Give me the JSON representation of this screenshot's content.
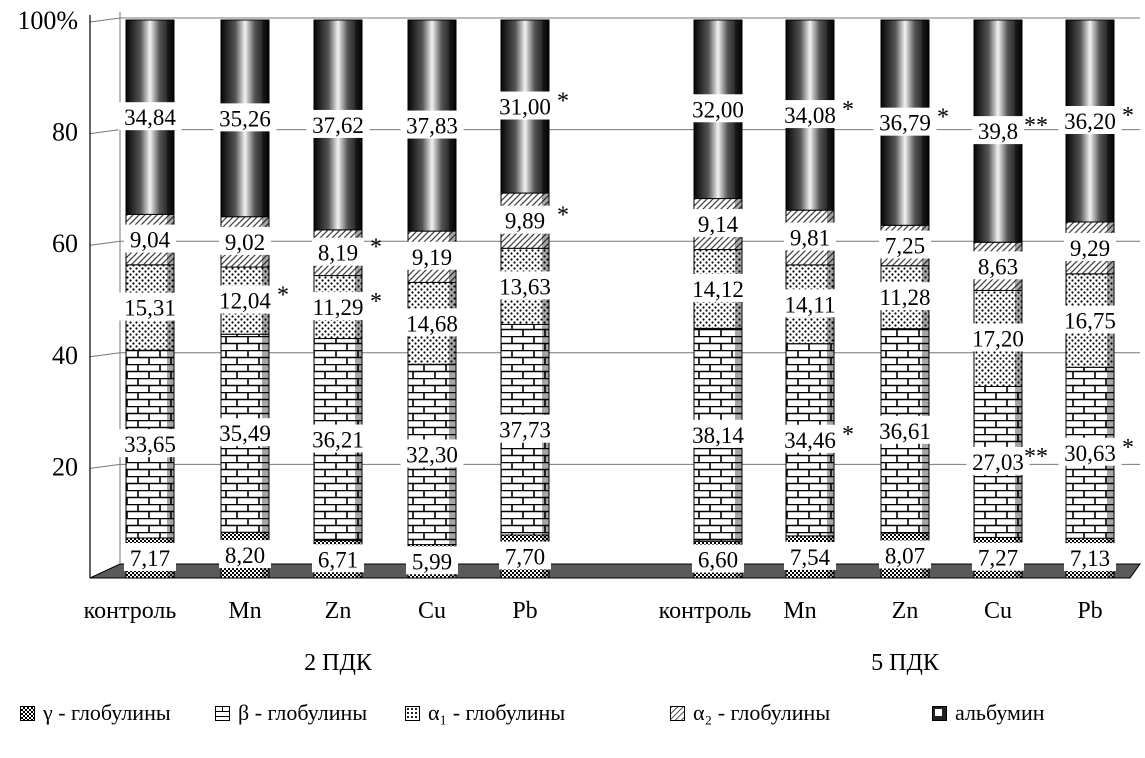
{
  "chart_data": {
    "type": "bar",
    "stacked": "percent",
    "y_ticks": [
      "100%",
      "80",
      "60",
      "40",
      "20"
    ],
    "ylim": [
      0,
      100
    ],
    "groups": [
      {
        "label": "2 ПДК",
        "categories": [
          "контроль",
          "Mn",
          "Zn",
          "Cu",
          "Pb"
        ]
      },
      {
        "label": "5 ПДК",
        "categories": [
          "контроль",
          "Mn",
          "Zn",
          "Cu",
          "Pb"
        ]
      }
    ],
    "series": [
      {
        "name": "альбумин",
        "values": [
          34.84,
          35.26,
          37.62,
          37.83,
          31.0,
          32.0,
          34.08,
          36.79,
          39.8,
          36.2
        ],
        "labels": [
          "34,84",
          "35,26",
          "37,62",
          "37,83",
          "31,00",
          "32,00",
          "34,08",
          "36,79",
          "39,8",
          "36,20"
        ],
        "marks": [
          "",
          "",
          "",
          "",
          "*",
          "",
          "*",
          "*",
          "**",
          "*"
        ]
      },
      {
        "name": "α₂ - глобулины",
        "values": [
          9.04,
          9.02,
          8.19,
          9.19,
          9.89,
          9.14,
          9.81,
          7.25,
          8.63,
          9.29
        ],
        "labels": [
          "9,04",
          "9,02",
          "8,19",
          "9,19",
          "9,89",
          "9,14",
          "9,81",
          "7,25",
          "8,63",
          "9,29"
        ],
        "marks": [
          "",
          "",
          "*",
          "",
          "*",
          "",
          "",
          "",
          "",
          ""
        ]
      },
      {
        "name": "α₁ - глобулины",
        "values": [
          15.31,
          12.04,
          11.29,
          14.68,
          13.63,
          14.12,
          14.11,
          11.28,
          17.2,
          16.75
        ],
        "labels": [
          "15,31",
          "12,04",
          "11,29",
          "14,68",
          "13,63",
          "14,12",
          "14,11",
          "11,28",
          "17,20",
          "16,75"
        ],
        "marks": [
          "",
          "*",
          "*",
          "",
          "",
          "",
          "",
          "",
          "",
          ""
        ]
      },
      {
        "name": "β - глобулины",
        "values": [
          33.65,
          35.49,
          36.21,
          32.3,
          37.73,
          38.14,
          34.46,
          36.61,
          27.03,
          30.63
        ],
        "labels": [
          "33,65",
          "35,49",
          "36,21",
          "32,30",
          "37,73",
          "38,14",
          "34,46",
          "36,61",
          "27,03",
          "30,63"
        ],
        "marks": [
          "",
          "",
          "",
          "",
          "",
          "",
          "*",
          "",
          "**",
          "*"
        ]
      },
      {
        "name": "γ - глобулины",
        "values": [
          7.17,
          8.2,
          6.71,
          5.99,
          7.7,
          6.6,
          7.54,
          8.07,
          7.27,
          7.13
        ],
        "labels": [
          "7,17",
          "8,20",
          "6,71",
          "5,99",
          "7,70",
          "6,60",
          "7,54",
          "8,07",
          "7,27",
          "7,13"
        ],
        "marks": [
          "",
          "",
          "",
          "",
          "",
          "",
          "",
          "",
          "",
          ""
        ]
      }
    ],
    "legend": {
      "position": "bottom",
      "entries": [
        {
          "label": "γ - глобулины",
          "icon": "checker-swatch-icon"
        },
        {
          "label": "β - глобулины",
          "icon": "brick-swatch-icon"
        },
        {
          "label": "α₁ - глобулины",
          "icon": "dots-swatch-icon"
        },
        {
          "label": "α₂ - глобулины",
          "icon": "hatch-swatch-icon"
        },
        {
          "label": "альбумин",
          "icon": "solid-swatch-icon"
        }
      ]
    },
    "gridlines": true,
    "colors": {
      "albumin": "#111111",
      "alpha2": "#ffffff",
      "alpha1": "#ffffff",
      "beta": "#ffffff",
      "gamma": "#ffffff",
      "floor": "#555555"
    }
  }
}
